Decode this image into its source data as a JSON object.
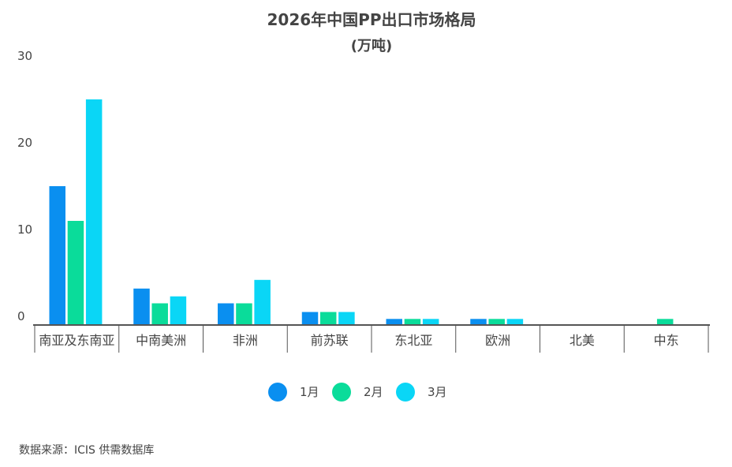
{
  "chart_data": {
    "type": "bar",
    "title": "2026年中国PP出口市场格局",
    "subtitle": "(万吨)",
    "xlabel": "",
    "ylabel": "",
    "ylim": [
      0,
      30
    ],
    "yticks": [
      "0",
      "10",
      "20",
      "30"
    ],
    "grid": false,
    "legend_position": "bottom",
    "categories": [
      "南亚及东南亚",
      "中南美洲",
      "非洲",
      "前苏联",
      "东北亚",
      "欧洲",
      "北美",
      "中东"
    ],
    "series": [
      {
        "name": "1月",
        "color": "#0a8ff0",
        "values": [
          16,
          4.2,
          2.5,
          1.5,
          0.7,
          0.7,
          0,
          0
        ]
      },
      {
        "name": "2月",
        "color": "#0adc9a",
        "values": [
          12,
          2.5,
          2.5,
          1.5,
          0.7,
          0.7,
          0,
          0.7
        ]
      },
      {
        "name": "3月",
        "color": "#0ad6f6",
        "values": [
          26,
          3.3,
          5.2,
          1.5,
          0.7,
          0.7,
          0,
          0
        ]
      }
    ]
  },
  "source_text": "数据来源：ICIS 供需数据库"
}
